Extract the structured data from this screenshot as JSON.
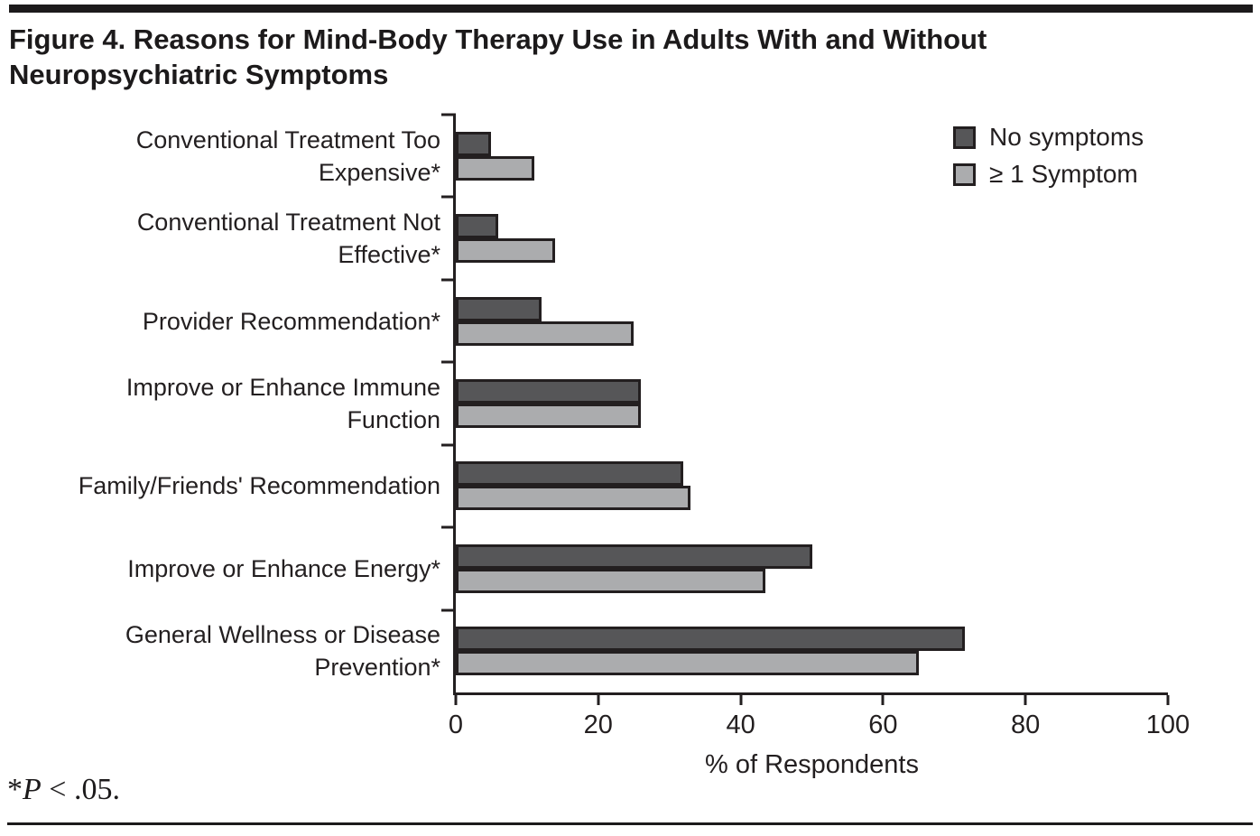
{
  "title": "Figure 4. Reasons for Mind-Body Therapy Use in Adults With and Without Neuropsychiatric Symptoms",
  "footnote": {
    "star": "*",
    "p_symbol": "P",
    "rest": " < .05."
  },
  "colors": {
    "bar_dark": "#565658",
    "bar_light": "#ABACAE",
    "ink": "#231F20"
  },
  "chart_data": {
    "type": "bar",
    "orientation": "horizontal",
    "title": "Figure 4. Reasons for Mind-Body Therapy Use in Adults With and Without Neuropsychiatric Symptoms",
    "categories": [
      "Conventional Treatment Too\nExpensive*",
      "Conventional Treatment Not\nEffective*",
      "Provider Recommendation*",
      "Improve or Enhance Immune\nFunction",
      "Family/Friends' Recommendation",
      "Improve or Enhance Energy*",
      "General Wellness or Disease\nPrevention*"
    ],
    "series": [
      {
        "name": "No symptoms",
        "color": "#565658",
        "values": [
          5,
          6,
          12,
          26,
          32,
          50,
          71.5
        ]
      },
      {
        "name": "≥ 1 Symptom",
        "color": "#ABACAE",
        "values": [
          11,
          14,
          25,
          26,
          33,
          43.5,
          65
        ]
      }
    ],
    "xlabel": "% of Respondents",
    "xlim": [
      0,
      100
    ],
    "xticks": [
      0,
      20,
      40,
      60,
      80,
      100
    ],
    "legend_position": "top-right",
    "grid": false,
    "footnote": "*P < .05."
  }
}
